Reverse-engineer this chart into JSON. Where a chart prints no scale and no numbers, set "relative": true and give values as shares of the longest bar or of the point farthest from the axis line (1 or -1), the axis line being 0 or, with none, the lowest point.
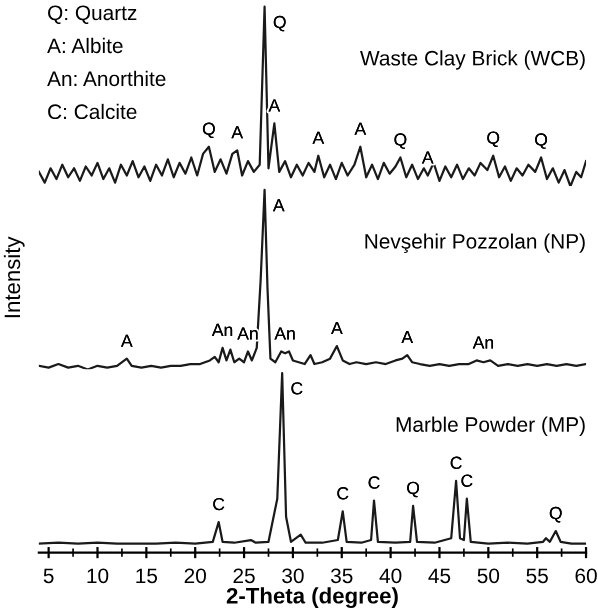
{
  "chart_data": [
    {
      "type": "line",
      "title": "Waste Clay Brick (WCB)",
      "relative": true,
      "tick_labels": false,
      "xlim": [
        4,
        60
      ],
      "grid": false,
      "legend": false,
      "marker": "none",
      "line_style": "solid",
      "annotations": [
        "Q: Quartz",
        "A: Albite",
        "An: Anorthite",
        "C: Calcite",
        {
          "text": "Q",
          "x": 21.4,
          "y": 0.22
        },
        {
          "text": "A",
          "x": 24.3,
          "y": 0.2
        },
        {
          "text": "Q",
          "x": 27.1,
          "y": 1.0
        },
        {
          "text": "A",
          "x": 28.1,
          "y": 0.35
        },
        {
          "text": "A",
          "x": 32.6,
          "y": 0.17
        },
        {
          "text": "A",
          "x": 36.9,
          "y": 0.22
        },
        {
          "text": "Q",
          "x": 41,
          "y": 0.16
        },
        {
          "text": "A",
          "x": 43.8,
          "y": 0.06
        },
        {
          "text": "Q",
          "x": 50.5,
          "y": 0.17
        },
        {
          "text": "Q",
          "x": 55.4,
          "y": 0.16
        }
      ],
      "series": [
        {
          "color": "#1a1a1a",
          "x": [
            4,
            4.6,
            5.2,
            5.8,
            6.4,
            7,
            7.6,
            8.2,
            8.8,
            9.4,
            10,
            10.6,
            11.2,
            11.8,
            12.4,
            13,
            13.6,
            14.2,
            14.8,
            15.4,
            16,
            16.6,
            17.2,
            17.8,
            18.4,
            19,
            19.6,
            20.2,
            20.8,
            21.4,
            22,
            22.6,
            23.2,
            23.8,
            24.3,
            24.8,
            25.4,
            26,
            26.6,
            27.1,
            27.5,
            28.1,
            28.6,
            29.2,
            29.8,
            30.4,
            31,
            31.6,
            32.2,
            32.6,
            33.2,
            33.8,
            34.4,
            35,
            35.6,
            36.3,
            36.9,
            37.5,
            38.1,
            38.7,
            39.3,
            39.9,
            40.5,
            41,
            41.6,
            42.2,
            42.8,
            43.4,
            43.8,
            44.4,
            45,
            45.6,
            46.2,
            46.8,
            47.4,
            48,
            48.6,
            49.2,
            49.9,
            50.5,
            51.1,
            51.7,
            52.3,
            52.9,
            53.5,
            54.1,
            54.8,
            55.4,
            56,
            56.6,
            57.2,
            57.8,
            58.4,
            59,
            59.5,
            60
          ],
          "values": [
            0.08,
            0.02,
            0.1,
            0.04,
            0.12,
            0.05,
            0.1,
            0.03,
            0.11,
            0.06,
            0.13,
            0.04,
            0.1,
            0.02,
            0.12,
            0.06,
            0.14,
            0.05,
            0.11,
            0.03,
            0.12,
            0.06,
            0.15,
            0.05,
            0.13,
            0.07,
            0.16,
            0.06,
            0.18,
            0.22,
            0.08,
            0.15,
            0.07,
            0.18,
            0.2,
            0.06,
            0.14,
            0.08,
            0.12,
            1.0,
            0.1,
            0.35,
            0.08,
            0.14,
            0.05,
            0.12,
            0.06,
            0.13,
            0.08,
            0.17,
            0.05,
            0.12,
            0.04,
            0.13,
            0.06,
            0.12,
            0.22,
            0.05,
            0.12,
            0.04,
            0.13,
            0.07,
            0.11,
            0.16,
            0.05,
            0.12,
            0.04,
            0.1,
            0.06,
            0.13,
            0.03,
            0.11,
            0.05,
            0.12,
            0.04,
            0.1,
            0.06,
            0.13,
            0.09,
            0.17,
            0.05,
            0.11,
            0.03,
            0.1,
            0.06,
            0.12,
            0.08,
            0.16,
            0.04,
            0.1,
            0.02,
            0.09,
            0.0,
            0.08,
            0.05,
            0.14
          ]
        }
      ]
    },
    {
      "type": "line",
      "title": "Nevşehir Pozzolan (NP)",
      "ylabel": "Intensity",
      "relative": true,
      "tick_labels": false,
      "xlim": [
        4,
        60
      ],
      "grid": false,
      "legend": false,
      "marker": "none",
      "line_style": "solid",
      "annotations": [
        {
          "text": "A",
          "x": 13,
          "y": 0.06
        },
        {
          "text": "An",
          "x": 22.8,
          "y": 0.12
        },
        {
          "text": "An",
          "x": 25.4,
          "y": 0.1
        },
        {
          "text": "A",
          "x": 27.1,
          "y": 1.0
        },
        {
          "text": "An",
          "x": 29.2,
          "y": 0.1
        },
        {
          "text": "A",
          "x": 34.5,
          "y": 0.13
        },
        {
          "text": "A",
          "x": 41.7,
          "y": 0.08
        },
        {
          "text": "An",
          "x": 49.5,
          "y": 0.05
        }
      ],
      "series": [
        {
          "color": "#1a1a1a",
          "x": [
            4,
            5,
            6,
            7,
            8,
            9,
            10,
            11,
            12,
            13,
            13.5,
            14.5,
            15.5,
            16.5,
            17.5,
            18.5,
            19.5,
            20.5,
            21.5,
            22,
            22.4,
            22.8,
            23.2,
            23.6,
            24,
            24.5,
            25,
            25.4,
            25.8,
            26.3,
            26.7,
            27.1,
            27.4,
            27.7,
            28.2,
            28.8,
            29.2,
            29.6,
            30,
            30.6,
            31.2,
            31.8,
            32.2,
            33,
            33.8,
            34.5,
            35.1,
            35.8,
            36.5,
            37.5,
            38.5,
            39.5,
            40.5,
            41.2,
            41.7,
            42.2,
            43,
            44,
            45,
            46,
            47,
            48,
            48.8,
            49.5,
            50.2,
            51,
            52,
            53,
            54,
            55,
            56,
            57,
            58,
            59,
            60
          ],
          "values": [
            0.02,
            0.01,
            0.03,
            0.01,
            0.02,
            0.0,
            0.02,
            0.01,
            0.02,
            0.06,
            0.02,
            0.01,
            0.02,
            0.01,
            0.02,
            0.02,
            0.03,
            0.03,
            0.05,
            0.07,
            0.04,
            0.12,
            0.05,
            0.11,
            0.04,
            0.06,
            0.04,
            0.1,
            0.05,
            0.12,
            0.5,
            1.0,
            0.45,
            0.06,
            0.04,
            0.1,
            0.09,
            0.1,
            0.05,
            0.04,
            0.03,
            0.08,
            0.03,
            0.04,
            0.06,
            0.13,
            0.05,
            0.03,
            0.04,
            0.03,
            0.04,
            0.03,
            0.05,
            0.06,
            0.08,
            0.04,
            0.03,
            0.02,
            0.03,
            0.02,
            0.03,
            0.03,
            0.05,
            0.04,
            0.05,
            0.02,
            0.03,
            0.02,
            0.03,
            0.02,
            0.03,
            0.02,
            0.03,
            0.02,
            0.03
          ]
        }
      ]
    },
    {
      "type": "line",
      "title": "Marble Powder (MP)",
      "xlabel": "2-Theta (degree)",
      "relative": true,
      "tick_labels": "x",
      "xlim": [
        4,
        60
      ],
      "xticks": [
        5,
        10,
        15,
        20,
        25,
        30,
        35,
        40,
        45,
        50,
        55,
        60
      ],
      "grid": false,
      "legend": false,
      "marker": "none",
      "line_style": "solid",
      "annotations": [
        {
          "text": "C",
          "x": 22.4,
          "y": 0.17
        },
        {
          "text": "C",
          "x": 28.9,
          "y": 1.0
        },
        {
          "text": "C",
          "x": 35.1,
          "y": 0.23
        },
        {
          "text": "C",
          "x": 38.3,
          "y": 0.29
        },
        {
          "text": "Q",
          "x": 42.3,
          "y": 0.26
        },
        {
          "text": "C",
          "x": 46.7,
          "y": 0.4
        },
        {
          "text": "C",
          "x": 47.8,
          "y": 0.3
        },
        {
          "text": "Q",
          "x": 56.9,
          "y": 0.12
        }
      ],
      "series": [
        {
          "color": "#1a1a1a",
          "x": [
            4,
            6,
            8,
            10,
            12,
            14,
            16,
            18,
            20,
            21.8,
            22.4,
            22.8,
            24,
            25.7,
            26.2,
            27.5,
            28.4,
            28.9,
            29.3,
            29.8,
            30.8,
            31.3,
            33,
            34.6,
            35.1,
            35.5,
            37,
            38,
            38.3,
            38.7,
            40.5,
            42,
            42.3,
            42.7,
            44.5,
            46.2,
            46.7,
            47.1,
            47.5,
            47.8,
            48.2,
            50,
            52,
            54,
            55.6,
            55.9,
            56.3,
            56.9,
            57.4,
            58.5,
            60
          ],
          "values": [
            0.05,
            0.055,
            0.05,
            0.055,
            0.05,
            0.05,
            0.05,
            0.055,
            0.05,
            0.06,
            0.17,
            0.06,
            0.055,
            0.07,
            0.055,
            0.06,
            0.3,
            1.0,
            0.2,
            0.06,
            0.1,
            0.055,
            0.055,
            0.07,
            0.23,
            0.06,
            0.055,
            0.07,
            0.29,
            0.06,
            0.055,
            0.06,
            0.26,
            0.06,
            0.055,
            0.08,
            0.4,
            0.08,
            0.07,
            0.3,
            0.06,
            0.05,
            0.055,
            0.05,
            0.06,
            0.08,
            0.06,
            0.12,
            0.06,
            0.05,
            0.05
          ]
        }
      ]
    }
  ]
}
